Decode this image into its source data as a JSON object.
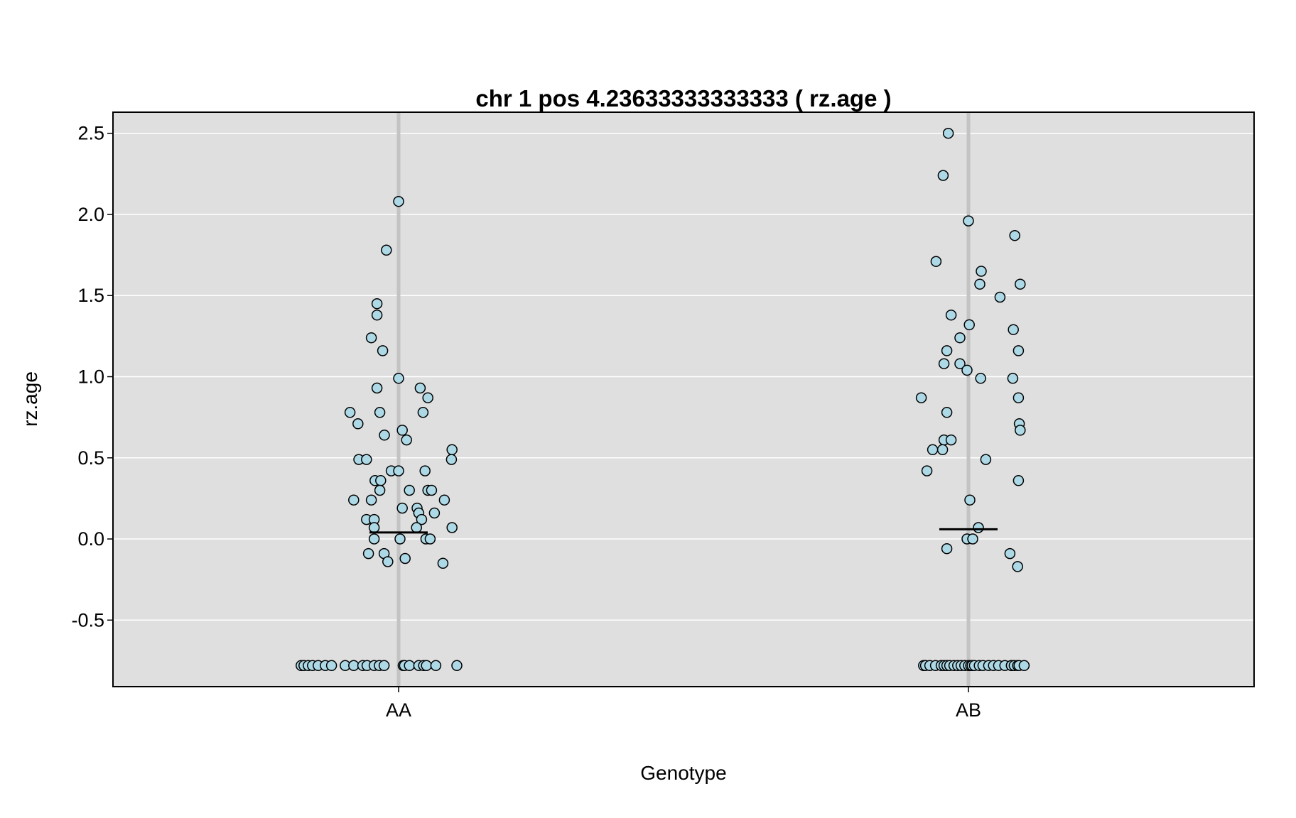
{
  "chart_data": {
    "type": "scatter",
    "title": "chr 1 pos 4.23633333333333 ( rz.age )",
    "xlabel": "Genotype",
    "ylabel": "rz.age",
    "categories": [
      "AA",
      "AB"
    ],
    "ylim": [
      -0.91,
      2.63
    ],
    "yticks": [
      "2.5",
      "2.0",
      "1.5",
      "1.0",
      "0.5",
      "0.0",
      "-0.5"
    ],
    "ytick_values": [
      2.5,
      2.0,
      1.5,
      1.0,
      0.5,
      0.0,
      -0.5
    ],
    "grid": true,
    "colors": {
      "panel_background": "#dfdfdf",
      "grid": "#ffffff",
      "category_line": "#c3c3c3",
      "point_fill": "#add8e6",
      "point_stroke": "#000000",
      "mean_line": "#000000"
    },
    "means": [
      0.04,
      0.06
    ],
    "series": [
      {
        "category": "AA",
        "points": [
          [
            -0.343,
            -0.78
          ],
          [
            -0.333,
            -0.78
          ],
          [
            -0.318,
            -0.78
          ],
          [
            -0.303,
            -0.78
          ],
          [
            -0.283,
            -0.78
          ],
          [
            -0.258,
            -0.78
          ],
          [
            -0.236,
            -0.78
          ],
          [
            -0.188,
            -0.78
          ],
          [
            -0.158,
            -0.78
          ],
          [
            -0.126,
            -0.78
          ],
          [
            -0.111,
            -0.78
          ],
          [
            -0.086,
            -0.78
          ],
          [
            -0.068,
            -0.78
          ],
          [
            -0.051,
            -0.78
          ],
          [
            0.016,
            -0.78
          ],
          [
            0.021,
            -0.78
          ],
          [
            0.038,
            -0.78
          ],
          [
            0.071,
            -0.78
          ],
          [
            0.088,
            -0.78
          ],
          [
            0.098,
            -0.78
          ],
          [
            0.131,
            -0.78
          ],
          [
            0.205,
            -0.78
          ],
          [
            0.0,
            2.08
          ],
          [
            -0.043,
            1.78
          ],
          [
            -0.076,
            1.45
          ],
          [
            -0.076,
            1.38
          ],
          [
            -0.096,
            1.24
          ],
          [
            -0.056,
            1.16
          ],
          [
            0.0,
            0.99
          ],
          [
            -0.076,
            0.93
          ],
          [
            0.076,
            0.93
          ],
          [
            0.103,
            0.87
          ],
          [
            -0.171,
            0.78
          ],
          [
            -0.066,
            0.78
          ],
          [
            0.086,
            0.78
          ],
          [
            -0.143,
            0.71
          ],
          [
            -0.05,
            0.64
          ],
          [
            0.013,
            0.67
          ],
          [
            0.028,
            0.61
          ],
          [
            0.188,
            0.55
          ],
          [
            0.186,
            0.49
          ],
          [
            -0.14,
            0.49
          ],
          [
            -0.113,
            0.49
          ],
          [
            -0.026,
            0.42
          ],
          [
            0.0,
            0.42
          ],
          [
            0.093,
            0.42
          ],
          [
            -0.083,
            0.36
          ],
          [
            -0.063,
            0.36
          ],
          [
            -0.066,
            0.3
          ],
          [
            0.038,
            0.3
          ],
          [
            0.103,
            0.3
          ],
          [
            0.116,
            0.3
          ],
          [
            -0.158,
            0.24
          ],
          [
            -0.096,
            0.24
          ],
          [
            0.161,
            0.24
          ],
          [
            0.013,
            0.19
          ],
          [
            0.065,
            0.19
          ],
          [
            0.071,
            0.16
          ],
          [
            0.126,
            0.16
          ],
          [
            -0.113,
            0.12
          ],
          [
            -0.086,
            0.12
          ],
          [
            0.081,
            0.12
          ],
          [
            -0.086,
            0.07
          ],
          [
            0.063,
            0.07
          ],
          [
            0.188,
            0.07
          ],
          [
            -0.086,
            0.0
          ],
          [
            0.005,
            0.0
          ],
          [
            0.096,
            0.0
          ],
          [
            0.111,
            0.0
          ],
          [
            -0.051,
            -0.09
          ],
          [
            -0.106,
            -0.09
          ],
          [
            -0.038,
            -0.14
          ],
          [
            0.023,
            -0.12
          ],
          [
            0.156,
            -0.15
          ]
        ]
      },
      {
        "category": "AB",
        "points": [
          [
            -0.158,
            -0.78
          ],
          [
            -0.151,
            -0.78
          ],
          [
            -0.136,
            -0.78
          ],
          [
            -0.116,
            -0.78
          ],
          [
            -0.096,
            -0.78
          ],
          [
            -0.086,
            -0.78
          ],
          [
            -0.076,
            -0.78
          ],
          [
            -0.066,
            -0.78
          ],
          [
            -0.051,
            -0.78
          ],
          [
            -0.038,
            -0.78
          ],
          [
            -0.026,
            -0.78
          ],
          [
            -0.013,
            -0.78
          ],
          [
            0.0,
            -0.78
          ],
          [
            0.008,
            -0.78
          ],
          [
            0.013,
            -0.78
          ],
          [
            0.021,
            -0.78
          ],
          [
            0.038,
            -0.78
          ],
          [
            0.051,
            -0.78
          ],
          [
            0.071,
            -0.78
          ],
          [
            0.088,
            -0.78
          ],
          [
            0.106,
            -0.78
          ],
          [
            0.128,
            -0.78
          ],
          [
            0.151,
            -0.78
          ],
          [
            0.151,
            -0.78
          ],
          [
            0.161,
            -0.78
          ],
          [
            0.173,
            -0.78
          ],
          [
            0.178,
            -0.78
          ],
          [
            0.196,
            -0.78
          ],
          [
            -0.071,
            2.5
          ],
          [
            -0.089,
            2.24
          ],
          [
            -0.114,
            1.71
          ],
          [
            0.0,
            1.96
          ],
          [
            0.04,
            1.57
          ],
          [
            0.045,
            1.65
          ],
          [
            0.111,
            1.49
          ],
          [
            0.163,
            1.87
          ],
          [
            0.182,
            1.57
          ],
          [
            -0.061,
            1.38
          ],
          [
            -0.03,
            1.24
          ],
          [
            0.003,
            1.32
          ],
          [
            -0.076,
            1.16
          ],
          [
            -0.086,
            1.08
          ],
          [
            -0.03,
            1.08
          ],
          [
            -0.005,
            1.04
          ],
          [
            0.043,
            0.99
          ],
          [
            0.158,
            1.29
          ],
          [
            0.176,
            1.16
          ],
          [
            0.156,
            0.99
          ],
          [
            0.176,
            0.87
          ],
          [
            -0.166,
            0.87
          ],
          [
            0.179,
            0.71
          ],
          [
            0.182,
            0.67
          ],
          [
            -0.076,
            0.78
          ],
          [
            -0.086,
            0.61
          ],
          [
            -0.061,
            0.61
          ],
          [
            -0.091,
            0.55
          ],
          [
            -0.126,
            0.55
          ],
          [
            0.061,
            0.49
          ],
          [
            -0.146,
            0.42
          ],
          [
            0.176,
            0.36
          ],
          [
            0.005,
            0.24
          ],
          [
            0.035,
            0.07
          ],
          [
            -0.005,
            0.0
          ],
          [
            0.015,
            0.0
          ],
          [
            -0.076,
            -0.06
          ],
          [
            0.146,
            -0.09
          ],
          [
            0.173,
            -0.17
          ]
        ]
      }
    ]
  }
}
